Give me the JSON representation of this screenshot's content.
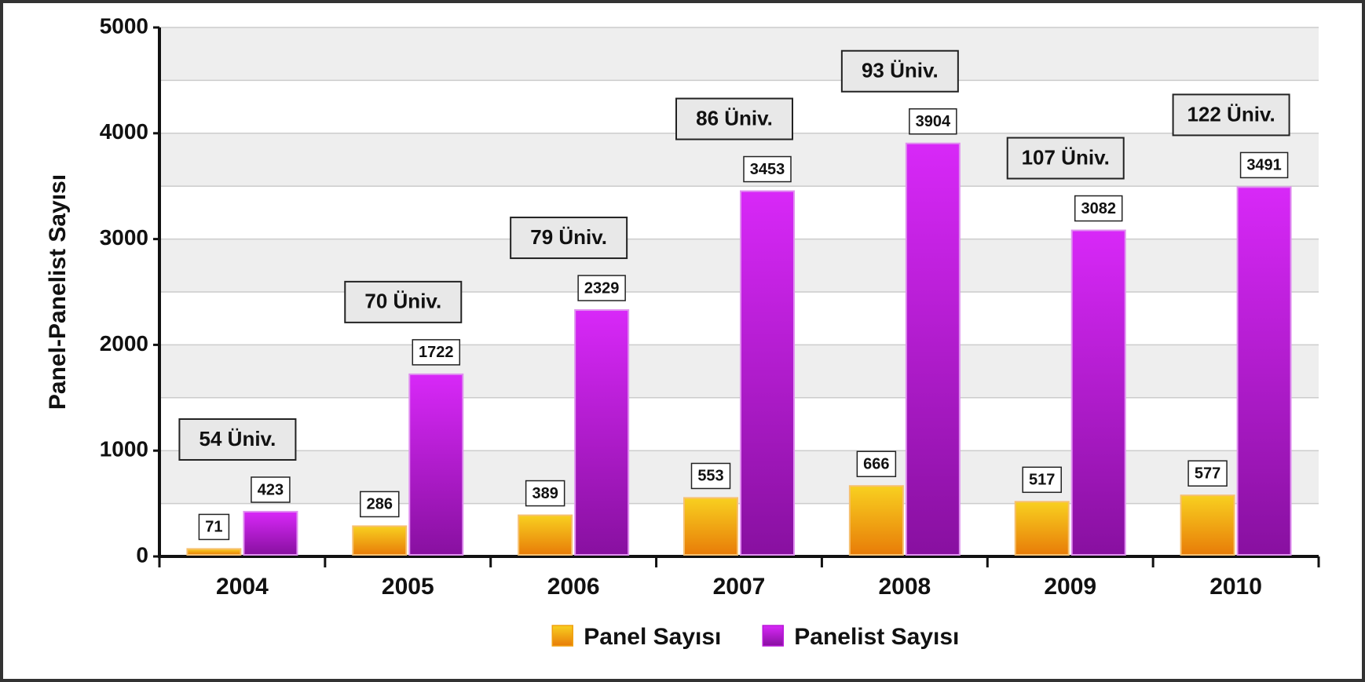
{
  "chart_data": {
    "type": "bar",
    "y_label": "Panel-Panelist Sayısı",
    "categories": [
      "2004",
      "2005",
      "2006",
      "2007",
      "2008",
      "2009",
      "2010"
    ],
    "series": [
      {
        "name": "Panel Sayısı",
        "color": "#f0a010",
        "values": [
          71,
          286,
          389,
          553,
          666,
          517,
          577
        ]
      },
      {
        "name": "Panelist Sayısı",
        "color": "#b818d8",
        "values": [
          423,
          1722,
          2329,
          3453,
          3904,
          3082,
          3491
        ]
      }
    ],
    "annotations": [
      "54 Üniv.",
      "70 Üniv.",
      "79 Üniv.",
      "86 Üniv.",
      "93 Üniv.",
      "107 Üniv.",
      "122 Üniv."
    ],
    "ylim": [
      0,
      5000
    ],
    "yticks": [
      0,
      1000,
      2000,
      3000,
      4000,
      5000
    ],
    "grid": true,
    "legend": "bottom"
  }
}
